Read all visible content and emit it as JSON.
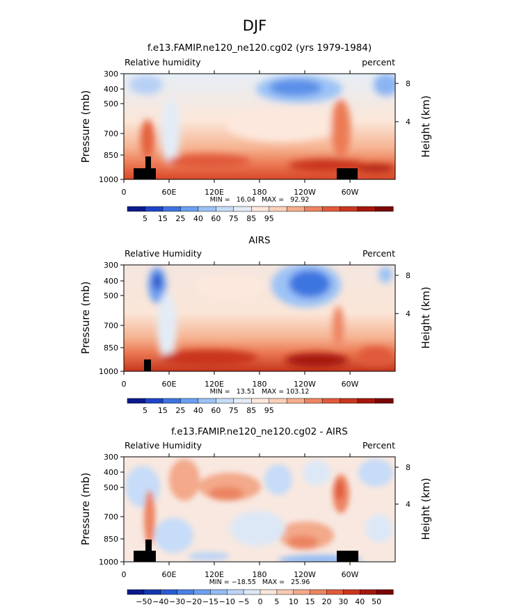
{
  "figure_title": "DJF",
  "chart_data": [
    {
      "type": "heatmap",
      "title": "f.e13.FAMIP.ne120_ne120.cg02 (yrs 1979-1984)",
      "left_label": "Relative humidity",
      "right_label": "percent",
      "ylabel": "Pressure (mb)",
      "ylabel_right": "Height (km)",
      "x_ticks": [
        "0",
        "60E",
        "120E",
        "180",
        "120W",
        "60W"
      ],
      "y_ticks": [
        "300",
        "400",
        "500",
        "700",
        "850",
        "1000"
      ],
      "y_ticks_right": [
        "8",
        "4"
      ],
      "stats": "MIN =   16.04   MAX =   92.92",
      "colorbar_labels": [
        "5",
        "15",
        "25",
        "40",
        "60",
        "75",
        "85",
        "95"
      ],
      "colorbar_colors": [
        "#0a1a8c",
        "#1f44c8",
        "#3d74e0",
        "#6a9ff0",
        "#9cc3f6",
        "#c6dcf8",
        "#e3ecf6",
        "#fde8dd",
        "#fbd0b8",
        "#f6ae8c",
        "#ee8462",
        "#e05a3a",
        "#c9361e",
        "#a4170c",
        "#7a0606"
      ]
    },
    {
      "type": "heatmap",
      "title": "AIRS",
      "left_label": "Relative Humidity",
      "right_label": "Percent",
      "ylabel": "Pressure (mb)",
      "ylabel_right": "Height (km)",
      "x_ticks": [
        "0",
        "60E",
        "120E",
        "180",
        "120W",
        "60W"
      ],
      "y_ticks": [
        "300",
        "400",
        "500",
        "700",
        "850",
        "1000"
      ],
      "y_ticks_right": [
        "8",
        "4"
      ],
      "stats": "MIN =   13.51   MAX = 103.12",
      "colorbar_labels": [
        "5",
        "15",
        "25",
        "40",
        "60",
        "75",
        "85",
        "95"
      ],
      "colorbar_colors": [
        "#0a1a8c",
        "#1f44c8",
        "#3d74e0",
        "#6a9ff0",
        "#9cc3f6",
        "#c6dcf8",
        "#e3ecf6",
        "#fde8dd",
        "#fbd0b8",
        "#f6ae8c",
        "#ee8462",
        "#e05a3a",
        "#c9361e",
        "#a4170c",
        "#7a0606"
      ]
    },
    {
      "type": "heatmap",
      "title": "f.e13.FAMIP.ne120_ne120.cg02 - AIRS",
      "left_label": "Relative Humidity",
      "right_label": "Percent",
      "ylabel": "Pressure (mb)",
      "ylabel_right": "Height (km)",
      "x_ticks": [
        "0",
        "60E",
        "120E",
        "180",
        "120W",
        "60W"
      ],
      "y_ticks": [
        "300",
        "400",
        "500",
        "700",
        "850",
        "1000"
      ],
      "y_ticks_right": [
        "8",
        "4"
      ],
      "stats": "MIN = −18.55   MAX =   25.96",
      "colorbar_labels": [
        "−50",
        "−40",
        "−30",
        "−20",
        "−15",
        "−10",
        "−5",
        "0",
        "5",
        "10",
        "15",
        "20",
        "30",
        "40",
        "50"
      ],
      "colorbar_colors": [
        "#0a1a8c",
        "#1538b0",
        "#2a5cd0",
        "#4a80e4",
        "#6fa0ee",
        "#95bcf4",
        "#bcd4f6",
        "#dde8f6",
        "#f8e6da",
        "#f7cbb3",
        "#f3a98a",
        "#ec8462",
        "#e05a3a",
        "#c9361e",
        "#a4170c",
        "#7a0606"
      ]
    }
  ]
}
